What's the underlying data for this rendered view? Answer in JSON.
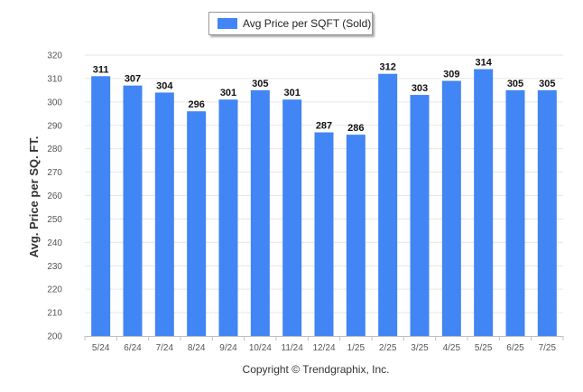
{
  "chart_data": {
    "type": "bar",
    "categories": [
      "5/24",
      "6/24",
      "7/24",
      "8/24",
      "9/24",
      "10/24",
      "11/24",
      "12/24",
      "1/25",
      "2/25",
      "3/25",
      "4/25",
      "5/25",
      "6/25",
      "7/25"
    ],
    "series": [
      {
        "name": "Avg Price per SQFT (Sold)",
        "values": [
          311,
          307,
          304,
          296,
          301,
          305,
          301,
          287,
          286,
          312,
          303,
          309,
          314,
          305,
          305
        ]
      }
    ],
    "ylabel": "Avg. Price per SQ. FT.",
    "xlabel": "",
    "ylim": [
      200,
      320
    ],
    "yticks": [
      200,
      210,
      220,
      230,
      240,
      250,
      260,
      270,
      280,
      290,
      300,
      310,
      320
    ],
    "grid": true,
    "legend_position": "top-center",
    "bar_color": "#4285f4"
  },
  "footer": {
    "copyright": "Copyright © Trendgraphix, Inc."
  }
}
